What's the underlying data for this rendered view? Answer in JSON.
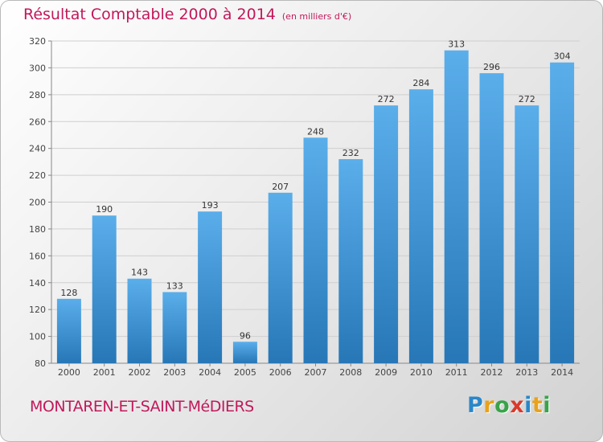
{
  "title": "Résultat Comptable 2000 à 2014",
  "subtitle": "(en milliers d'€)",
  "place_name": "MONTAREN-ET-SAINT-MéDIERS",
  "logo": {
    "text": "Proxiti",
    "letters": [
      {
        "ch": "P",
        "color": "#2a87c8"
      },
      {
        "ch": "r",
        "color": "#e8a21b"
      },
      {
        "ch": "o",
        "color": "#3aa34a"
      },
      {
        "ch": "x",
        "color": "#d93a2b"
      },
      {
        "ch": "i",
        "color": "#2a87c8"
      },
      {
        "ch": "t",
        "color": "#e8a21b"
      },
      {
        "ch": "i",
        "color": "#3aa34a"
      }
    ]
  },
  "colors": {
    "title": "#c2185b",
    "bar_top": "#5aaeea",
    "bar_bottom": "#2777b7",
    "grid": "#cfcfcf"
  },
  "chart_data": {
    "type": "bar",
    "categories": [
      "2000",
      "2001",
      "2002",
      "2003",
      "2004",
      "2005",
      "2006",
      "2007",
      "2008",
      "2009",
      "2010",
      "2011",
      "2012",
      "2013",
      "2014"
    ],
    "values": [
      128,
      190,
      143,
      133,
      193,
      96,
      207,
      248,
      232,
      272,
      284,
      313,
      296,
      272,
      304
    ],
    "ylim": [
      80,
      320
    ],
    "yticks": [
      80,
      100,
      120,
      140,
      160,
      180,
      200,
      220,
      240,
      260,
      280,
      300,
      320
    ],
    "grid": true,
    "data_labels": true
  }
}
